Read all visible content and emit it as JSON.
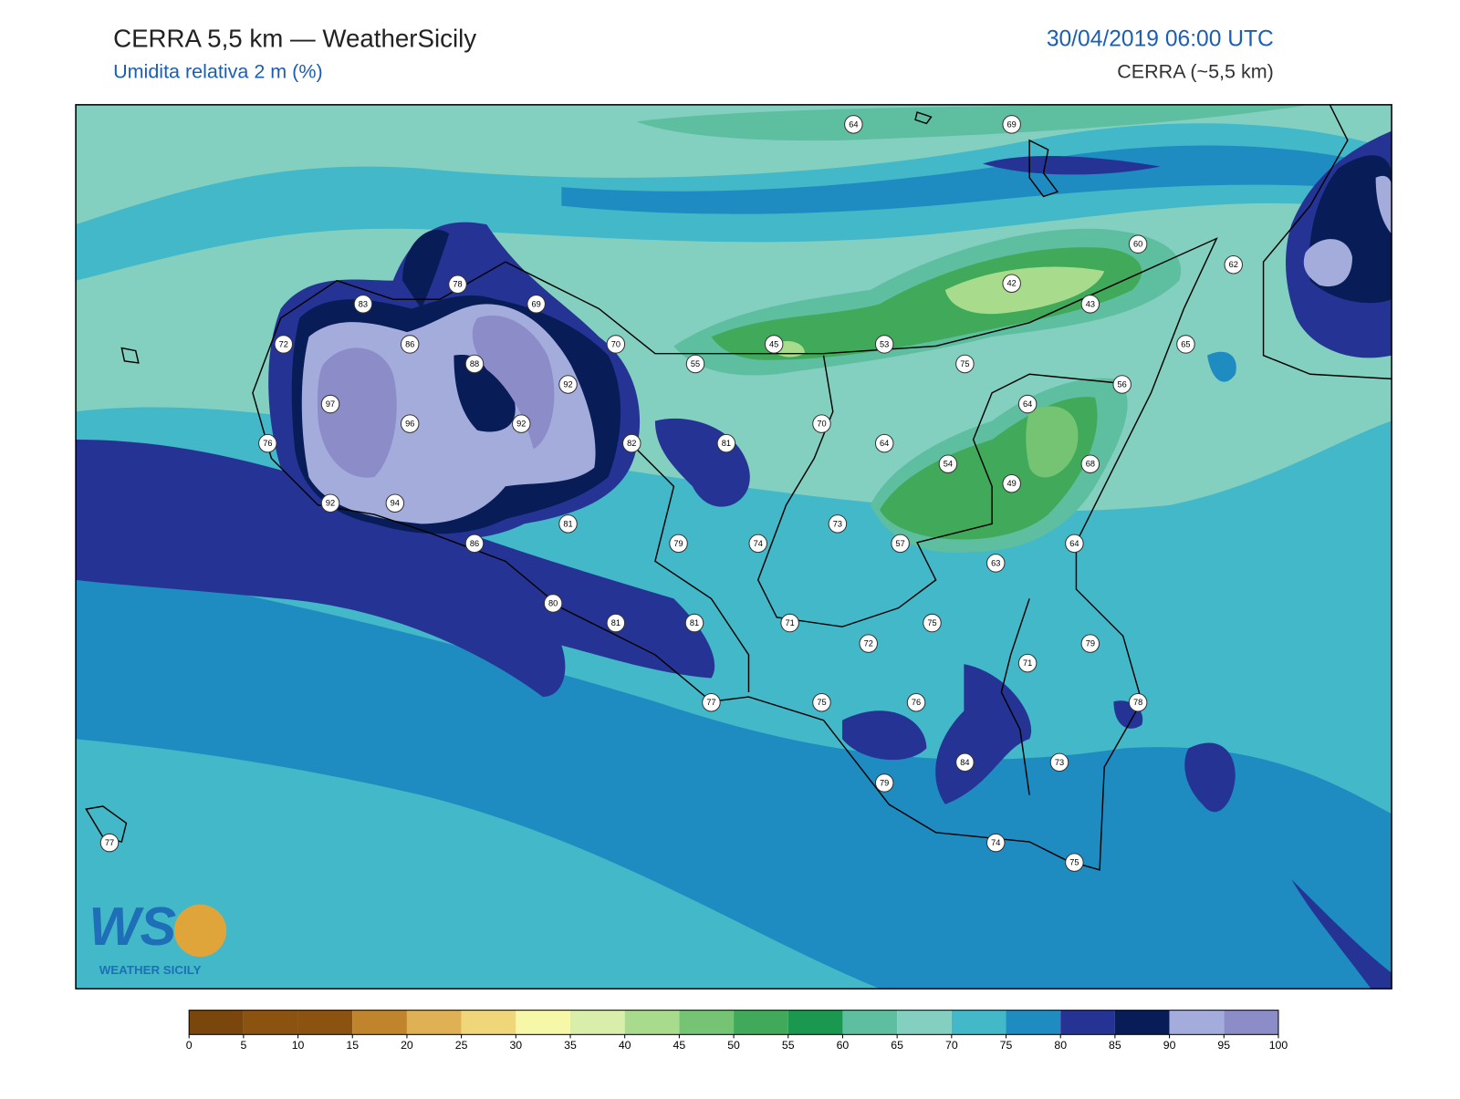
{
  "header": {
    "title": "CERRA 5,5 km — WeatherSicily",
    "subtitle": "Umidita relativa 2 m (%)",
    "datetime": "30/04/2019 06:00 UTC",
    "model": "CERRA (~5,5 km)"
  },
  "map": {
    "stations": [
      64,
      69,
      60,
      62,
      78,
      42,
      83,
      69,
      43,
      72,
      86,
      70,
      45,
      53,
      65,
      55,
      88,
      75,
      92,
      56,
      97,
      64,
      96,
      92,
      70,
      76,
      82,
      81,
      64,
      54,
      68,
      49,
      92,
      94,
      81,
      73,
      86,
      79,
      74,
      57,
      64,
      63,
      80,
      81,
      81,
      71,
      75,
      72,
      79,
      71,
      77,
      75,
      76,
      78,
      84,
      73,
      79,
      74,
      75,
      77
    ]
  },
  "logo": {
    "mark": "WS",
    "text": "WEATHER SICILY"
  },
  "colorbar": {
    "ticks": [
      0,
      5,
      10,
      15,
      20,
      25,
      30,
      35,
      40,
      45,
      50,
      55,
      60,
      65,
      70,
      75,
      80,
      85,
      90,
      95,
      100
    ],
    "colors": [
      "#7a460c",
      "#8c520f",
      "#8c520f",
      "#c0842c",
      "#e0b055",
      "#f0d67a",
      "#f7f7a8",
      "#d8eeaa",
      "#a8dc8c",
      "#74c474",
      "#40aa5a",
      "#1a9850",
      "#5ebfa0",
      "#84d0c0",
      "#42b8c8",
      "#1e8cc0",
      "#253494",
      "#081d58",
      "#a4acdc",
      "#8c8cc8"
    ]
  }
}
